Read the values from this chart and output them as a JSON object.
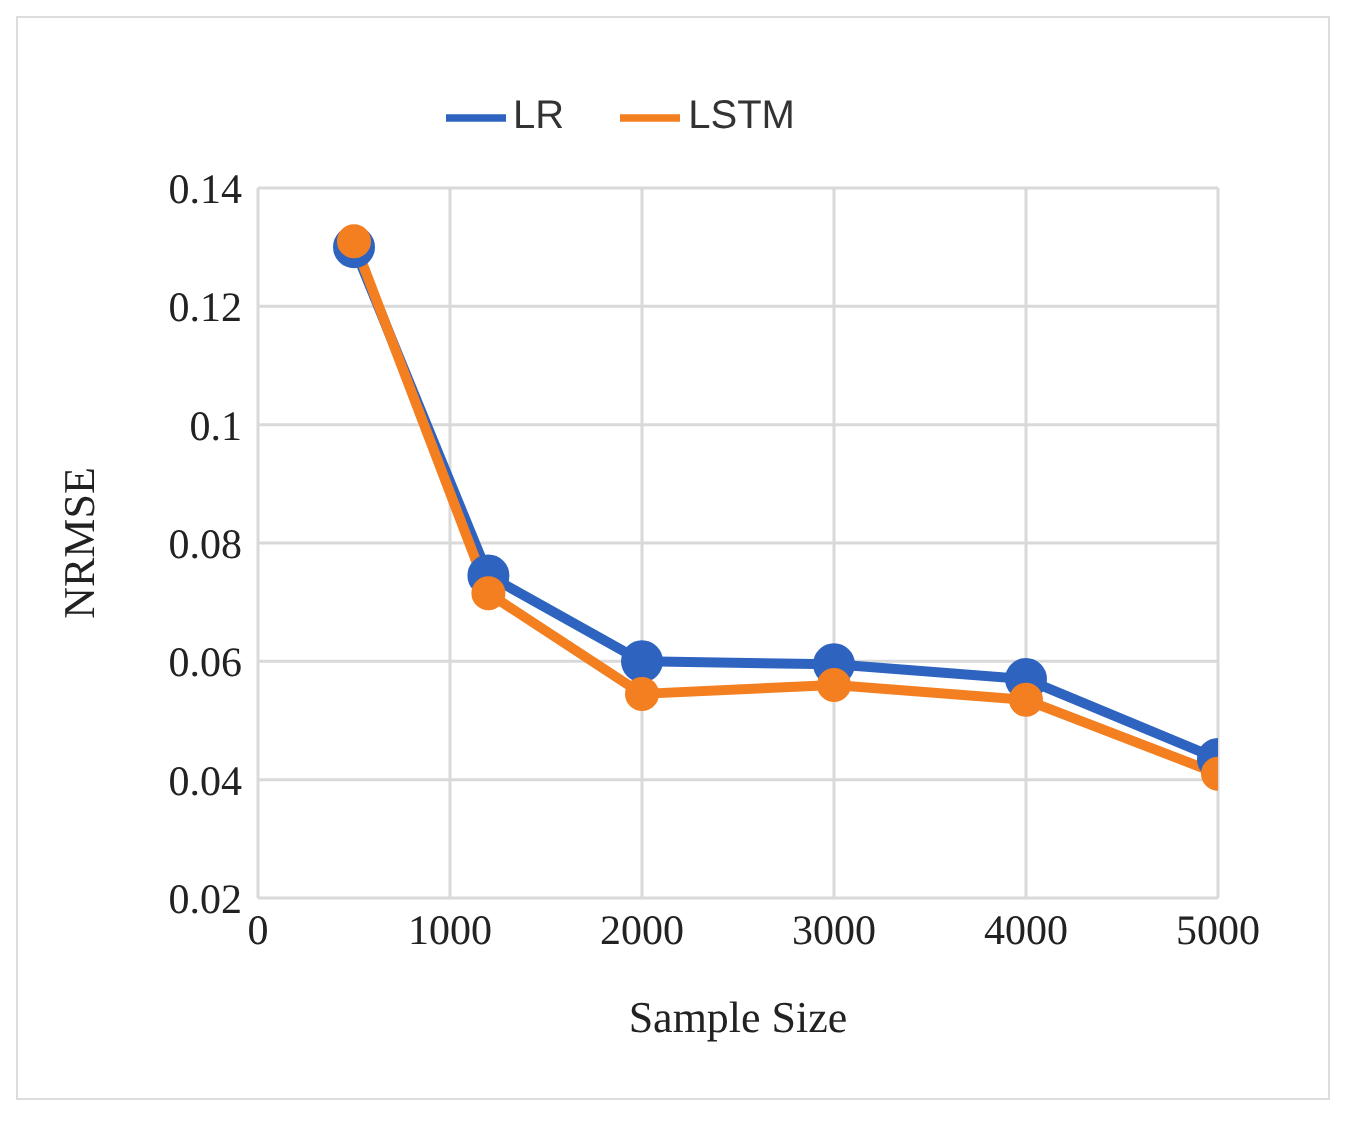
{
  "chart_data": {
    "type": "line",
    "xlabel": "Sample Size",
    "ylabel": "NRMSE",
    "x": [
      500,
      1200,
      2000,
      3000,
      4000,
      5000
    ],
    "series": [
      {
        "name": "LR",
        "color": "#2e64c0",
        "values": [
          0.13,
          0.0745,
          0.06,
          0.0595,
          0.057,
          0.0435
        ]
      },
      {
        "name": "LSTM",
        "color": "#f47f20",
        "values": [
          0.131,
          0.0715,
          0.0545,
          0.056,
          0.0535,
          0.041
        ]
      }
    ],
    "xlim": [
      0,
      5000
    ],
    "xticks": [
      0,
      1000,
      2000,
      3000,
      4000,
      5000
    ],
    "ylim": [
      0.02,
      0.14
    ],
    "yticks": [
      0.02,
      0.04,
      0.06,
      0.08,
      0.1,
      0.12,
      0.14
    ],
    "grid": true,
    "legend": "top",
    "marker": "circle",
    "line_style": "solid"
  }
}
